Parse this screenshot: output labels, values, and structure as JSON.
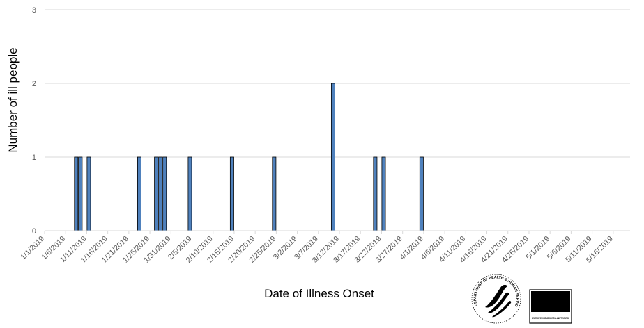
{
  "chart_data": {
    "type": "bar",
    "title": "",
    "xlabel": "Date of Illness Onset",
    "ylabel": "Number of ill people",
    "ylim": [
      0,
      3
    ],
    "y_ticks": [
      0,
      1,
      2,
      3
    ],
    "x_range": [
      "2019-01-01",
      "2019-05-20"
    ],
    "x_tick_labels": [
      "1/1/2019",
      "1/6/2019",
      "1/11/2019",
      "1/16/2019",
      "1/21/2019",
      "1/26/2019",
      "1/31/2019",
      "2/5/2019",
      "2/10/2019",
      "2/15/2019",
      "2/20/2019",
      "2/25/2019",
      "3/2/2019",
      "3/7/2019",
      "3/12/2019",
      "3/17/2019",
      "3/22/2019",
      "3/27/2019",
      "4/1/2019",
      "4/6/2019",
      "4/11/2019",
      "4/16/2019",
      "4/21/2019",
      "4/26/2019",
      "5/1/2019",
      "5/6/2019",
      "5/11/2019",
      "5/16/2019"
    ],
    "grid": true,
    "bar_color": "#4f81bd",
    "bar_edge_color": "#000000",
    "grid_color": "#d9d9d9",
    "series": [
      {
        "x": [
          "2019-01-08",
          "2019-01-09",
          "2019-01-11",
          "2019-01-23",
          "2019-01-27",
          "2019-01-28",
          "2019-01-29",
          "2019-02-04",
          "2019-02-14",
          "2019-02-24",
          "2019-03-10",
          "2019-03-20",
          "2019-03-22",
          "2019-03-31"
        ],
        "values": [
          1,
          1,
          1,
          1,
          1,
          1,
          1,
          1,
          1,
          1,
          2,
          1,
          1,
          1
        ]
      }
    ]
  },
  "logos": {
    "hhs": {
      "name": "hhs-seal-icon",
      "text": "DEPARTMENT OF HEALTH & HUMAN SERVICES USA"
    },
    "cdc": {
      "name": "cdc-logo-icon",
      "text": "CDC",
      "subtext": "CENTERS FOR DISEASE CONTROL AND PREVENTION"
    }
  }
}
